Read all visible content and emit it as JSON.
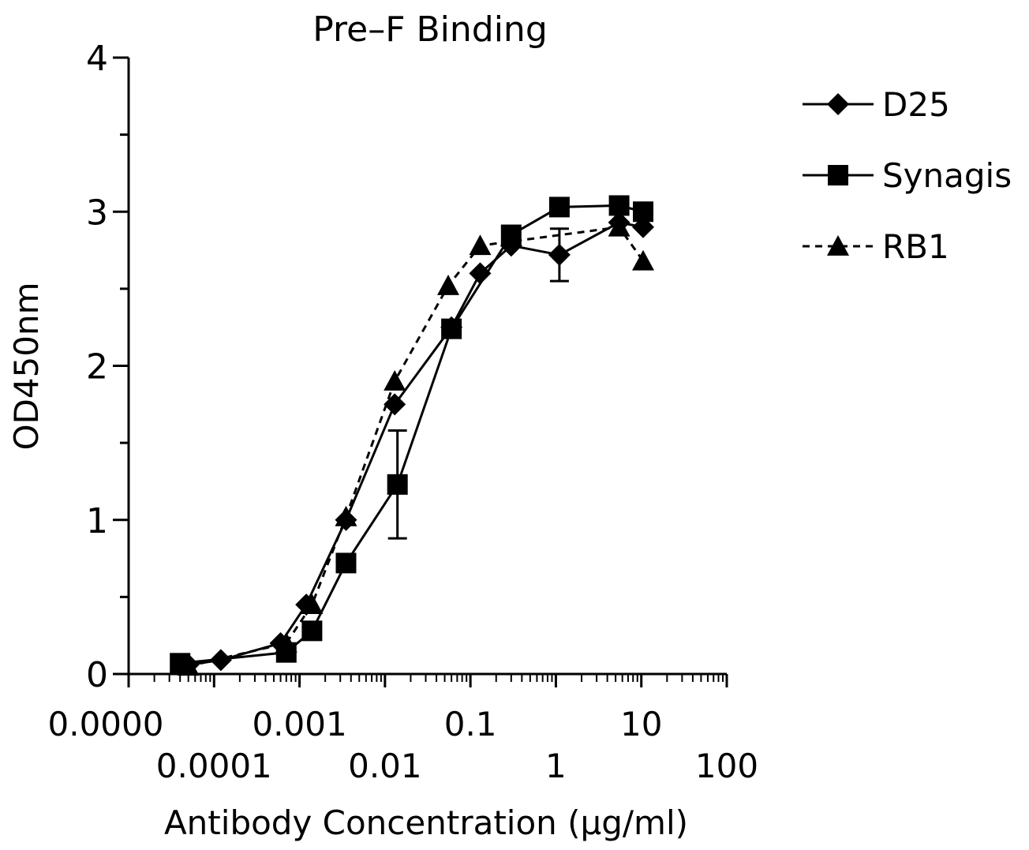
{
  "chart_data": {
    "type": "line",
    "title": "Pre–F Binding",
    "xlabel": "Antibody  Concentration  (μg/ml)",
    "ylabel": "OD450nm",
    "x_scale": "log",
    "xlim": [
      1e-05,
      100
    ],
    "ylim": [
      0,
      4
    ],
    "x_ticks_upper": [
      {
        "value": 1e-05,
        "label": "0.0000"
      },
      {
        "value": 0.001,
        "label": "0.001"
      },
      {
        "value": 0.1,
        "label": "0.1"
      },
      {
        "value": 10,
        "label": "10"
      }
    ],
    "x_ticks_lower": [
      {
        "value": 0.0001,
        "label": "0.0001"
      },
      {
        "value": 0.01,
        "label": "0.01"
      },
      {
        "value": 1,
        "label": "1"
      },
      {
        "value": 100,
        "label": "100"
      }
    ],
    "y_ticks": [
      {
        "value": 0,
        "label": "0"
      },
      {
        "value": 1,
        "label": "1"
      },
      {
        "value": 2,
        "label": "2"
      },
      {
        "value": 3,
        "label": "3"
      },
      {
        "value": 4,
        "label": "4"
      }
    ],
    "legend_position": "top-right",
    "grid": false,
    "series": [
      {
        "name": "D25",
        "marker": "diamond",
        "line": "solid",
        "points": [
          {
            "x": 5e-05,
            "y": 0.06
          },
          {
            "x": 0.00012,
            "y": 0.09
          },
          {
            "x": 0.0006,
            "y": 0.2
          },
          {
            "x": 0.0012,
            "y": 0.45
          },
          {
            "x": 0.0035,
            "y": 1.0
          },
          {
            "x": 0.013,
            "y": 1.75
          },
          {
            "x": 0.06,
            "y": 2.25
          },
          {
            "x": 0.13,
            "y": 2.6
          },
          {
            "x": 0.3,
            "y": 2.78
          },
          {
            "x": 1.1,
            "y": 2.72,
            "err": 0.17
          },
          {
            "x": 5.5,
            "y": 2.93
          },
          {
            "x": 10.5,
            "y": 2.9
          }
        ]
      },
      {
        "name": "Synagis",
        "marker": "square",
        "line": "solid",
        "points": [
          {
            "x": 4e-05,
            "y": 0.07
          },
          {
            "x": 0.0007,
            "y": 0.14
          },
          {
            "x": 0.0014,
            "y": 0.28
          },
          {
            "x": 0.0035,
            "y": 0.72
          },
          {
            "x": 0.014,
            "y": 1.23,
            "err": 0.35
          },
          {
            "x": 0.06,
            "y": 2.24
          },
          {
            "x": 0.3,
            "y": 2.85
          },
          {
            "x": 1.1,
            "y": 3.03
          },
          {
            "x": 5.5,
            "y": 3.04
          },
          {
            "x": 10.5,
            "y": 3.0
          }
        ]
      },
      {
        "name": "RB1",
        "marker": "triangle",
        "line": "dashed",
        "points": [
          {
            "x": 5e-05,
            "y": 0.05
          },
          {
            "x": 0.0007,
            "y": 0.2
          },
          {
            "x": 0.0014,
            "y": 0.45
          },
          {
            "x": 0.0035,
            "y": 1.02
          },
          {
            "x": 0.013,
            "y": 1.9
          },
          {
            "x": 0.055,
            "y": 2.52
          },
          {
            "x": 0.13,
            "y": 2.78
          },
          {
            "x": 5.5,
            "y": 2.9
          },
          {
            "x": 10.5,
            "y": 2.68
          }
        ]
      }
    ]
  }
}
